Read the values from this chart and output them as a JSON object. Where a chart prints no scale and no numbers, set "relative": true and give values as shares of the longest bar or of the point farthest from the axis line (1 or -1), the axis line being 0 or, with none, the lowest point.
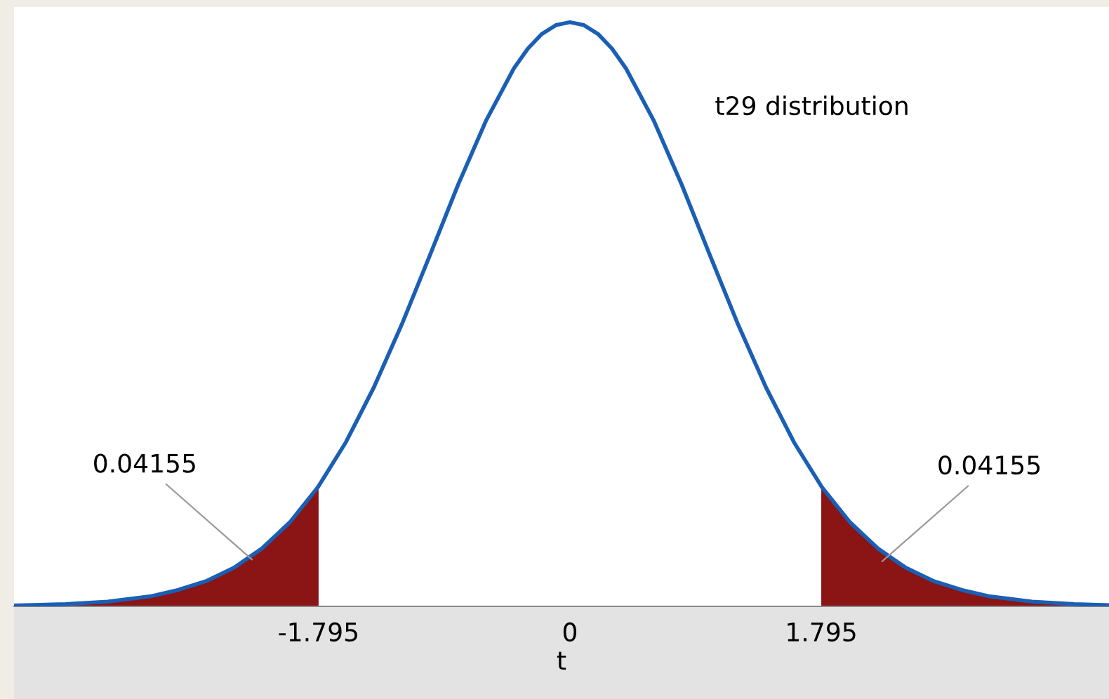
{
  "chart_data": {
    "type": "line",
    "relative": true,
    "xlabel": "t",
    "xlim": [
      -3.97,
      3.85
    ],
    "xticks": [
      -1.795,
      0,
      1.795
    ],
    "tick_labels": "x",
    "grid": false,
    "legend": false,
    "marker": "none",
    "line_style": "solid",
    "series": [
      {
        "type": "area",
        "color": "#8b1414",
        "x": [
          -3.97,
          -3.6,
          -3.3,
          -3.0,
          -2.8,
          -2.6,
          -2.4,
          -2.2,
          -2.0,
          -1.795
        ],
        "values": [
          0.0015,
          0.004,
          0.008,
          0.017,
          0.028,
          0.043,
          0.066,
          0.099,
          0.144,
          0.206
        ]
      },
      {
        "type": "area",
        "color": "#8b1414",
        "x": [
          1.795,
          2.0,
          2.2,
          2.4,
          2.6,
          2.8,
          3.0,
          3.3,
          3.6,
          3.85
        ],
        "values": [
          0.206,
          0.144,
          0.099,
          0.066,
          0.043,
          0.028,
          0.017,
          0.008,
          0.004,
          0.002
        ]
      },
      {
        "color": "#1a5fb4",
        "x": [
          -3.97,
          -3.6,
          -3.3,
          -3.0,
          -2.8,
          -2.6,
          -2.4,
          -2.2,
          -2.0,
          -1.8,
          -1.6,
          -1.4,
          -1.2,
          -1.0,
          -0.8,
          -0.6,
          -0.4,
          -0.3,
          -0.2,
          -0.1,
          0,
          0.1,
          0.2,
          0.3,
          0.4,
          0.6,
          0.8,
          1.0,
          1.2,
          1.4,
          1.6,
          1.8,
          2.0,
          2.2,
          2.4,
          2.6,
          2.8,
          3.0,
          3.3,
          3.6,
          3.85
        ],
        "values": [
          0.0015,
          0.004,
          0.008,
          0.017,
          0.028,
          0.043,
          0.066,
          0.099,
          0.144,
          0.204,
          0.281,
          0.375,
          0.483,
          0.601,
          0.721,
          0.831,
          0.921,
          0.955,
          0.98,
          0.995,
          1,
          0.995,
          0.98,
          0.955,
          0.921,
          0.831,
          0.721,
          0.601,
          0.483,
          0.375,
          0.281,
          0.204,
          0.144,
          0.099,
          0.066,
          0.043,
          0.028,
          0.017,
          0.008,
          0.004,
          0.002
        ]
      }
    ],
    "annotations": [
      "t29 distribution",
      {
        "text": "0.04155",
        "x": -2.27,
        "y": 0.08
      },
      {
        "text": "0.04155",
        "x": 2.23,
        "y": 0.077
      }
    ]
  }
}
